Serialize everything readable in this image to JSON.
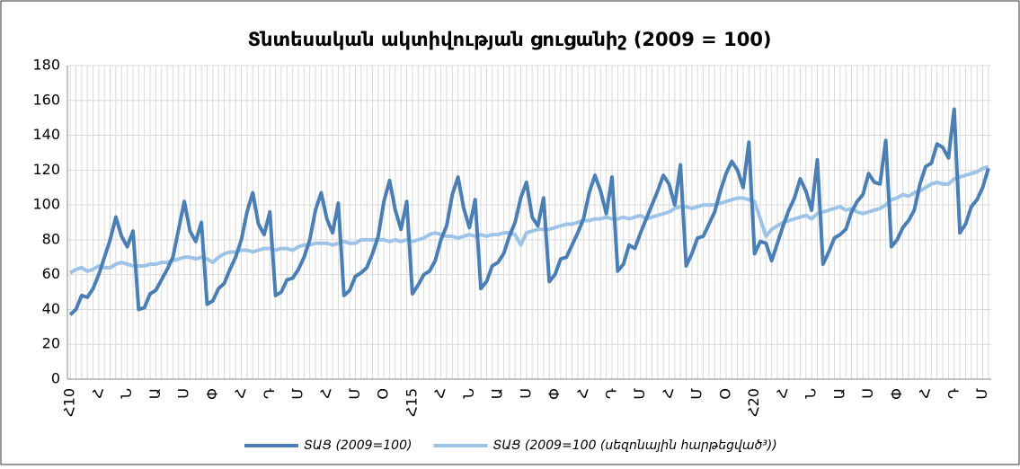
{
  "chart_data": {
    "type": "line",
    "title": "Տնտեսական ակտիվության ցուցանիշ (2009 = 100)",
    "categories": [
      "Հ10",
      null,
      null,
      null,
      null,
      "Հ",
      null,
      null,
      null,
      null,
      "Ն",
      null,
      null,
      null,
      null,
      "Ա",
      null,
      null,
      null,
      null,
      "Ս",
      null,
      null,
      null,
      null,
      "Փ",
      null,
      null,
      null,
      null,
      "Հ",
      null,
      null,
      null,
      null,
      "Դ",
      null,
      null,
      null,
      null,
      "Մ",
      null,
      null,
      null,
      null,
      "Հ",
      null,
      null,
      null,
      null,
      "Մ",
      null,
      null,
      null,
      null,
      "Օ",
      null,
      null,
      null,
      null,
      "Հ15",
      null,
      null,
      null,
      null,
      "Հ",
      null,
      null,
      null,
      null,
      "Ն",
      null,
      null,
      null,
      null,
      "Ա",
      null,
      null,
      null,
      null,
      "Ս",
      null,
      null,
      null,
      null,
      "Փ",
      null,
      null,
      null,
      null,
      "Հ",
      null,
      null,
      null,
      null,
      "Դ",
      null,
      null,
      null,
      null,
      "Մ",
      null,
      null,
      null,
      null,
      "Հ",
      null,
      null,
      null,
      null,
      "Մ",
      null,
      null,
      null,
      null,
      "Օ",
      null,
      null,
      null,
      null,
      "Հ20",
      null,
      null,
      null,
      null,
      "Հ",
      null,
      null,
      null,
      null,
      "Ն",
      null,
      null,
      null,
      null,
      "Ա",
      null,
      null,
      null,
      null,
      "Ս",
      null,
      null,
      null,
      null,
      "Փ",
      null,
      null,
      null,
      null,
      "Հ",
      null,
      null,
      null,
      null,
      "Դ",
      null,
      null,
      null,
      null,
      "Մ",
      null
    ],
    "series": [
      {
        "name": "ՏԱՑ (2009=100)",
        "color": "#4a7fb5",
        "width": 4,
        "values": [
          37,
          40,
          48,
          47,
          52,
          60,
          70,
          80,
          93,
          82,
          76,
          85,
          40,
          41,
          49,
          51,
          57,
          63,
          70,
          86,
          102,
          85,
          79,
          90,
          43,
          45,
          52,
          55,
          63,
          70,
          80,
          96,
          107,
          89,
          83,
          96,
          48,
          50,
          57,
          58,
          63,
          70,
          80,
          97,
          107,
          92,
          84,
          101,
          48,
          51,
          59,
          61,
          64,
          72,
          82,
          102,
          114,
          97,
          86,
          102,
          49,
          54,
          60,
          62,
          68,
          80,
          88,
          106,
          116,
          98,
          87,
          103,
          52,
          56,
          65,
          67,
          72,
          82,
          90,
          104,
          113,
          93,
          88,
          104,
          56,
          60,
          69,
          70,
          77,
          84,
          92,
          107,
          117,
          108,
          95,
          116,
          62,
          66,
          77,
          75,
          84,
          92,
          100,
          108,
          117,
          112,
          100,
          123,
          65,
          72,
          81,
          82,
          89,
          96,
          108,
          118,
          125,
          120,
          110,
          136,
          72,
          79,
          78,
          68,
          78,
          88,
          97,
          104,
          115,
          108,
          97,
          126,
          66,
          73,
          81,
          83,
          86,
          96,
          102,
          106,
          118,
          113,
          112,
          137,
          76,
          80,
          87,
          91,
          97,
          112,
          122,
          124,
          135,
          133,
          127,
          155,
          84,
          89,
          99,
          103,
          110,
          121
        ]
      },
      {
        "name": "ՏԱՑ (2009=100 (սեզոնային հարթեցված³))",
        "color": "#9dc3e6",
        "width": 4,
        "values": [
          61,
          63,
          64,
          62,
          63,
          65,
          64,
          64,
          66,
          67,
          66,
          65,
          65,
          65,
          66,
          66,
          67,
          67,
          68,
          69,
          70,
          70,
          69,
          70,
          69,
          67,
          70,
          72,
          73,
          73,
          74,
          74,
          73,
          74,
          75,
          75,
          74,
          75,
          75,
          74,
          76,
          77,
          77,
          78,
          78,
          78,
          77,
          78,
          79,
          78,
          78,
          80,
          80,
          80,
          80,
          80,
          79,
          80,
          79,
          80,
          79,
          80,
          81,
          83,
          84,
          83,
          82,
          82,
          81,
          82,
          83,
          82,
          83,
          82,
          83,
          83,
          84,
          84,
          83,
          77,
          84,
          85,
          86,
          86,
          86,
          87,
          88,
          89,
          89,
          90,
          91,
          91,
          92,
          92,
          93,
          92,
          92,
          93,
          92,
          93,
          94,
          92,
          93,
          94,
          95,
          96,
          98,
          99,
          99,
          98,
          99,
          100,
          100,
          100,
          101,
          102,
          103,
          104,
          104,
          103,
          102,
          92,
          82,
          86,
          88,
          90,
          91,
          92,
          93,
          94,
          92,
          95,
          96,
          97,
          98,
          99,
          97,
          98,
          96,
          95,
          96,
          97,
          98,
          100,
          103,
          104,
          106,
          105,
          107,
          108,
          110,
          112,
          113,
          112,
          112,
          115,
          116,
          117,
          118,
          119,
          121,
          122
        ]
      }
    ],
    "ylim": [
      0,
      180
    ],
    "yticks": [
      0,
      20,
      40,
      60,
      80,
      100,
      120,
      140,
      160,
      180
    ],
    "grid": true,
    "legend": "bottom"
  }
}
